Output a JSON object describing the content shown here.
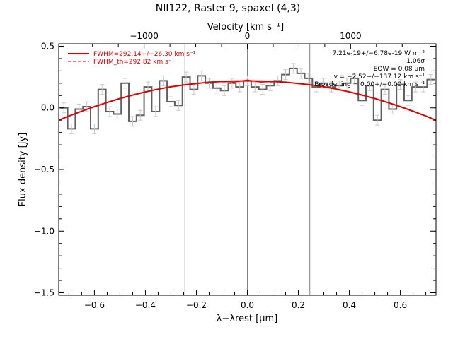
{
  "chart_data": {
    "type": "line",
    "title": "NII122, Raster 9, spaxel (4,3)",
    "xlabel": "λ−λrest [µm]",
    "ylabel": "Flux density [Jy]",
    "top_axis_label": "Velocity [km s⁻¹]",
    "xlim": [
      -0.74,
      0.74
    ],
    "ylim": [
      -1.52,
      0.52
    ],
    "x_ticks": [
      -0.6,
      -0.4,
      -0.2,
      0.0,
      0.2,
      0.4,
      0.6
    ],
    "x_tick_labels": [
      "−0.6",
      "−0.4",
      "−0.2",
      "0.0",
      "0.2",
      "0.4",
      "0.6"
    ],
    "y_ticks": [
      -1.5,
      -1.0,
      -0.5,
      0.0,
      0.5
    ],
    "y_tick_labels": [
      "−1.5",
      "−1.0",
      "−0.5",
      "0.0",
      "0.5"
    ],
    "top_ticks": [
      -1000,
      0,
      1000
    ],
    "top_tick_labels": [
      "−1000",
      "0",
      "1000"
    ],
    "top_tick_scale_um_per_kms": 0.000405,
    "vertical_lines": [
      -0.245,
      0.0,
      0.245
    ],
    "legend": [
      {
        "label": "FWHM=292.14+/−26.30 km s⁻¹",
        "style": "solid",
        "color": "#e00000"
      },
      {
        "label": "FWHM_th=292.82 km s⁻¹",
        "style": "dashed",
        "color": "#e00000"
      }
    ],
    "annotations": [
      "7.21e-19+/−6.78e-19 W m⁻²",
      "1.06σ",
      "EQW = 0.08 µm",
      "v = −2.52+/−137.12 km s⁻¹",
      "Broadening = 0.00+/−0.00 km s⁻¹"
    ],
    "series": [
      {
        "name": "data",
        "style": "step",
        "color": "#606060",
        "x": [
          -0.72,
          -0.69,
          -0.66,
          -0.63,
          -0.6,
          -0.57,
          -0.54,
          -0.51,
          -0.48,
          -0.45,
          -0.42,
          -0.39,
          -0.36,
          -0.33,
          -0.3,
          -0.27,
          -0.24,
          -0.21,
          -0.18,
          -0.15,
          -0.12,
          -0.09,
          -0.06,
          -0.03,
          0.0,
          0.03,
          0.06,
          0.09,
          0.12,
          0.15,
          0.18,
          0.21,
          0.24,
          0.27,
          0.3,
          0.33,
          0.36,
          0.39,
          0.42,
          0.45,
          0.48,
          0.51,
          0.54,
          0.57,
          0.6,
          0.63,
          0.66,
          0.69,
          0.72
        ],
        "y": [
          0.0,
          -0.17,
          -0.01,
          0.01,
          -0.17,
          0.15,
          -0.03,
          -0.05,
          0.2,
          -0.11,
          -0.06,
          0.17,
          -0.03,
          0.22,
          0.05,
          0.02,
          0.25,
          0.15,
          0.26,
          0.2,
          0.16,
          0.14,
          0.2,
          0.17,
          0.22,
          0.17,
          0.15,
          0.18,
          0.22,
          0.27,
          0.32,
          0.28,
          0.24,
          0.17,
          0.2,
          0.17,
          0.18,
          0.2,
          0.24,
          0.06,
          0.18,
          -0.1,
          0.15,
          -0.01,
          0.19,
          0.06,
          0.17,
          0.17,
          0.23
        ],
        "error": 0.04
      },
      {
        "name": "fit",
        "style": "line",
        "color": "#e00000",
        "x": [
          -0.74,
          -0.7,
          -0.65,
          -0.6,
          -0.55,
          -0.5,
          -0.45,
          -0.4,
          -0.35,
          -0.3,
          -0.25,
          -0.2,
          -0.15,
          -0.1,
          -0.05,
          0.0,
          0.05,
          0.1,
          0.15,
          0.2,
          0.25,
          0.3,
          0.35,
          0.4,
          0.45,
          0.5,
          0.55,
          0.6,
          0.65,
          0.7,
          0.74
        ],
        "y": [
          -0.1,
          -0.066,
          -0.027,
          0.01,
          0.044,
          0.076,
          0.104,
          0.13,
          0.152,
          0.171,
          0.186,
          0.198,
          0.208,
          0.214,
          0.218,
          0.219,
          0.218,
          0.214,
          0.208,
          0.198,
          0.186,
          0.171,
          0.152,
          0.13,
          0.104,
          0.076,
          0.044,
          0.01,
          -0.027,
          -0.066,
          -0.1
        ]
      },
      {
        "name": "fit_th",
        "style": "line",
        "color": "#e00000",
        "x": [
          -0.1,
          -0.08,
          -0.06,
          -0.04,
          -0.02,
          0.0,
          0.02,
          0.04,
          0.06,
          0.08,
          0.1
        ],
        "y": [
          0.203,
          0.204,
          0.207,
          0.211,
          0.219,
          0.228,
          0.219,
          0.211,
          0.207,
          0.204,
          0.203
        ]
      }
    ]
  }
}
